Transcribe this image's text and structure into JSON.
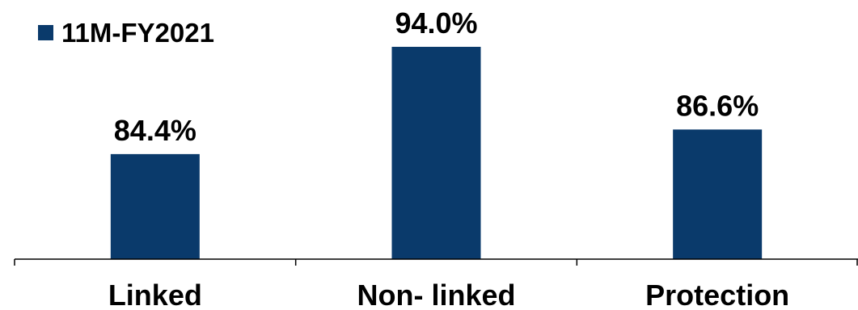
{
  "chart_data": {
    "type": "bar",
    "categories": [
      "Linked",
      "Non- linked",
      "Protection"
    ],
    "series": [
      {
        "name": "11M-FY2021",
        "values": [
          84.4,
          94.0,
          86.6
        ],
        "labels": [
          "84.4%",
          "94.0%",
          "86.6%"
        ],
        "color": "#0a3a6b"
      }
    ],
    "ylim": [
      75,
      97
    ],
    "grid": false,
    "legend": "top-left"
  }
}
